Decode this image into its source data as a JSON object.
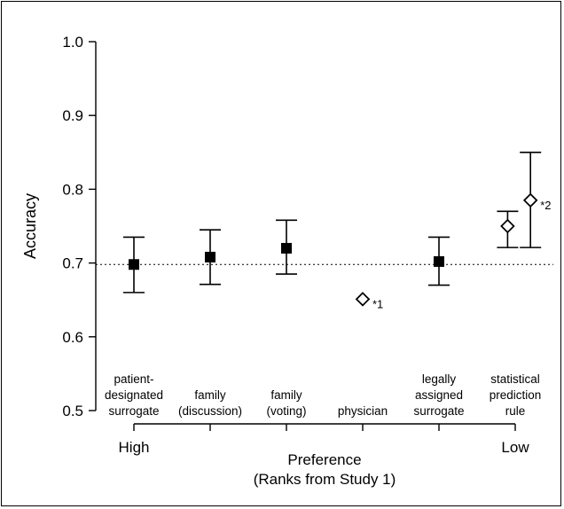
{
  "chart_data": {
    "type": "scatter",
    "ylabel": "Accuracy",
    "xlabel_lines": [
      "Preference",
      "(Ranks from Study 1)"
    ],
    "xlim": [
      0.5,
      6.5
    ],
    "ylim": [
      0.5,
      1.0
    ],
    "yticks": [
      0.5,
      0.6,
      0.7,
      0.8,
      0.9,
      1.0
    ],
    "ytick_labels": [
      "0.5",
      "0.6",
      "0.7",
      "0.8",
      "0.9",
      "1.0"
    ],
    "xtick_end_labels": {
      "first": "High",
      "last": "Low"
    },
    "reference_line": 0.698,
    "categories": [
      [
        "patient-",
        "designated",
        "surrogate"
      ],
      [
        "family",
        "(discussion)"
      ],
      [
        "family",
        "(voting)"
      ],
      [
        "physician"
      ],
      [
        "legally",
        "assigned",
        "surrogate"
      ],
      [
        "statistical",
        "prediction",
        "rule"
      ]
    ],
    "points": [
      {
        "x": 1,
        "y": 0.698,
        "lo": 0.66,
        "hi": 0.735,
        "marker": "square",
        "note": ""
      },
      {
        "x": 2,
        "y": 0.708,
        "lo": 0.671,
        "hi": 0.745,
        "marker": "square",
        "note": ""
      },
      {
        "x": 3,
        "y": 0.72,
        "lo": 0.685,
        "hi": 0.758,
        "marker": "square",
        "note": ""
      },
      {
        "x": 4,
        "y": 0.651,
        "lo": null,
        "hi": null,
        "marker": "diamond",
        "note": "*1"
      },
      {
        "x": 5,
        "y": 0.702,
        "lo": 0.67,
        "hi": 0.735,
        "marker": "square",
        "note": ""
      },
      {
        "x": 5.9,
        "y": 0.75,
        "lo": 0.721,
        "hi": 0.77,
        "marker": "diamond",
        "note": ""
      },
      {
        "x": 6.2,
        "y": 0.785,
        "lo": 0.721,
        "hi": 0.85,
        "marker": "diamond",
        "note": "*2"
      }
    ]
  }
}
